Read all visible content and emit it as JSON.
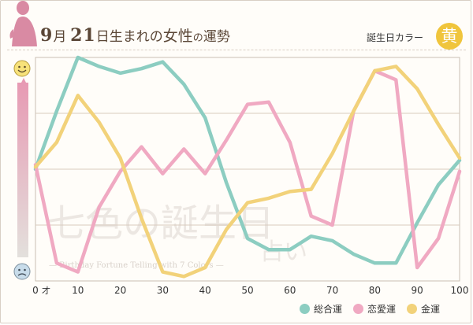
{
  "header": {
    "title_num1": "9",
    "title_month": "月",
    "title_num2": "21",
    "title_kanji1": "日生まれの",
    "title_big": "女性",
    "title_kana": "の",
    "title_kanji2": "運勢",
    "lucky_label": "誕生日カラー",
    "lucky_color_char": "黄",
    "lucky_color_hex": "#f0c53c"
  },
  "watermark": {
    "main": "七色の誕生日",
    "sub": "占い",
    "english": "— Birthday Fortune Telling with 7 Colors —"
  },
  "icons": {
    "top": "happy-face-icon",
    "bottom": "sad-face-icon"
  },
  "chart_data": {
    "type": "line",
    "x_unit": "才",
    "xlim": [
      0,
      100
    ],
    "ylim": [
      0,
      100
    ],
    "x_ticks": [
      0,
      10,
      20,
      30,
      40,
      50,
      60,
      70,
      80,
      90,
      100
    ],
    "grid": true,
    "legend_position": "bottom-right",
    "series": [
      {
        "name": "総合運",
        "color": "#8ccdc1",
        "x": [
          0,
          5,
          10,
          15,
          20,
          25,
          30,
          35,
          40,
          45,
          50,
          55,
          60,
          65,
          70,
          75,
          80,
          85,
          90,
          95,
          100
        ],
        "y": [
          50,
          76,
          100,
          96,
          93,
          95,
          98,
          88,
          73,
          44,
          19,
          14,
          14,
          20,
          18,
          12,
          8,
          8,
          26,
          43,
          54
        ]
      },
      {
        "name": "恋愛運",
        "color": "#f0a9c2",
        "x": [
          0,
          5,
          10,
          15,
          20,
          25,
          30,
          35,
          40,
          45,
          50,
          55,
          60,
          65,
          70,
          75,
          80,
          85,
          90,
          95,
          100
        ],
        "y": [
          52,
          8,
          4,
          33,
          49,
          60,
          48,
          59,
          48,
          63,
          79,
          80,
          62,
          29,
          25,
          76,
          94,
          90,
          6,
          19,
          49
        ]
      },
      {
        "name": "金運",
        "color": "#f2d27a",
        "x": [
          0,
          5,
          10,
          15,
          20,
          25,
          30,
          35,
          40,
          45,
          50,
          55,
          60,
          65,
          70,
          75,
          80,
          85,
          90,
          95,
          100
        ],
        "y": [
          51,
          62,
          83,
          71,
          55,
          28,
          4,
          2,
          6,
          23,
          35,
          37,
          40,
          41,
          57,
          76,
          94,
          96,
          86,
          70,
          55
        ]
      }
    ]
  }
}
